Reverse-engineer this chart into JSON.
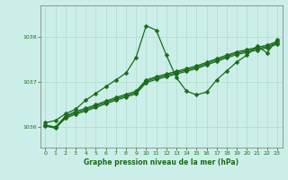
{
  "background_color": "#cceee8",
  "grid_color": "#aaddcc",
  "line_color": "#1a6b1a",
  "title": "Graphe pression niveau de la mer (hPa)",
  "xlim": [
    -0.5,
    23.5
  ],
  "ylim": [
    1035.55,
    1038.7
  ],
  "yticks": [
    1036,
    1037,
    1038
  ],
  "xticks": [
    0,
    1,
    2,
    3,
    4,
    5,
    6,
    7,
    8,
    9,
    10,
    11,
    12,
    13,
    14,
    15,
    16,
    17,
    18,
    19,
    20,
    21,
    22,
    23
  ],
  "series1": [
    1036.1,
    1036.15,
    1036.3,
    1036.4,
    1036.6,
    1036.75,
    1036.9,
    1037.05,
    1037.2,
    1037.55,
    1038.25,
    1038.15,
    1037.6,
    1037.1,
    1036.8,
    1036.72,
    1036.78,
    1037.05,
    1037.25,
    1037.45,
    1037.6,
    1037.8,
    1037.65,
    1037.95
  ],
  "series2": [
    1036.05,
    1036.0,
    1036.25,
    1036.35,
    1036.42,
    1036.5,
    1036.58,
    1036.66,
    1036.73,
    1036.8,
    1037.05,
    1037.12,
    1037.18,
    1037.24,
    1037.3,
    1037.36,
    1037.44,
    1037.52,
    1037.6,
    1037.67,
    1037.72,
    1037.77,
    1037.82,
    1037.9
  ],
  "series3": [
    1036.05,
    1036.0,
    1036.23,
    1036.32,
    1036.39,
    1036.47,
    1036.55,
    1036.63,
    1036.7,
    1036.77,
    1037.02,
    1037.09,
    1037.15,
    1037.21,
    1037.27,
    1037.33,
    1037.41,
    1037.49,
    1037.57,
    1037.64,
    1037.69,
    1037.74,
    1037.79,
    1037.87
  ],
  "series4": [
    1036.03,
    1035.98,
    1036.2,
    1036.29,
    1036.36,
    1036.44,
    1036.52,
    1036.6,
    1036.67,
    1036.74,
    1036.99,
    1037.06,
    1037.12,
    1037.18,
    1037.24,
    1037.3,
    1037.38,
    1037.46,
    1037.54,
    1037.61,
    1037.66,
    1037.71,
    1037.76,
    1037.84
  ]
}
